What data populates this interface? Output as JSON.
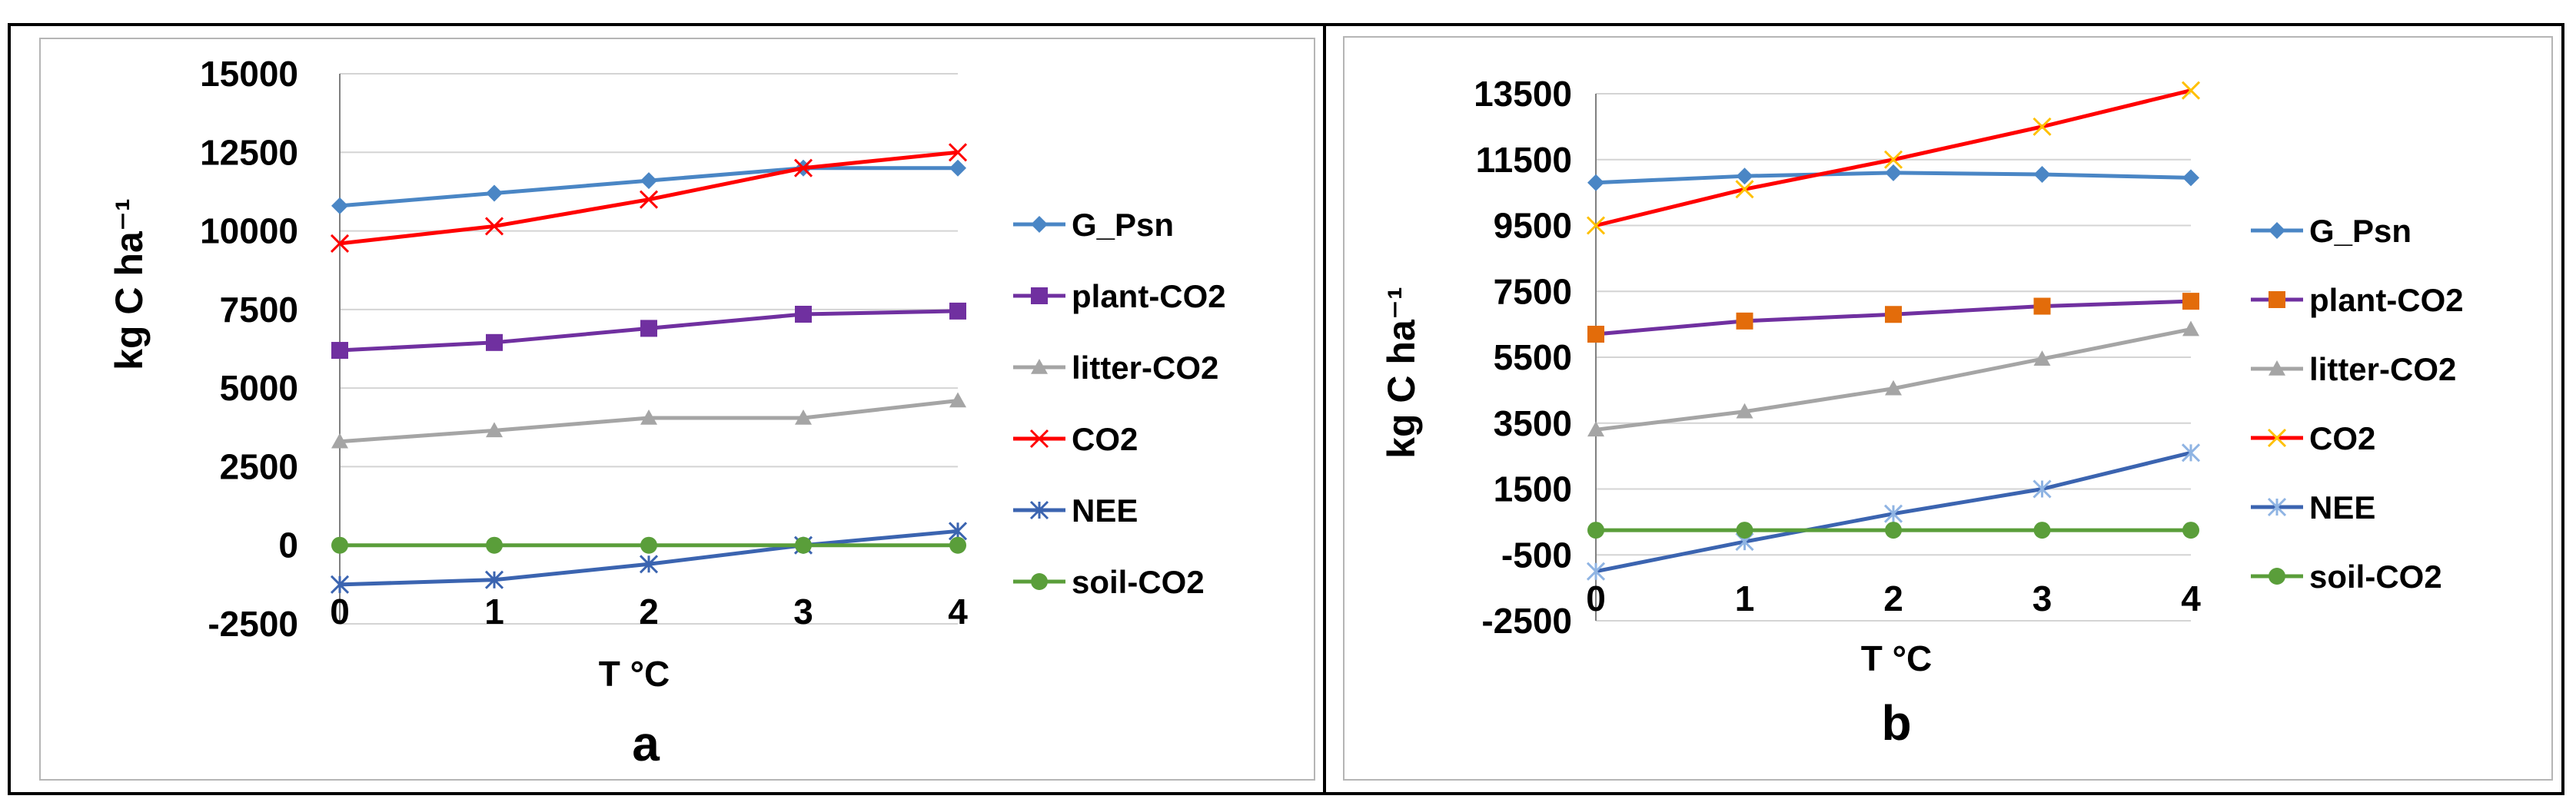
{
  "chart_data": [
    {
      "type": "line",
      "panel_label": "a",
      "xlabel": "T °C",
      "ylabel": "kg C ha⁻¹",
      "x": [
        0,
        1,
        2,
        3,
        4
      ],
      "x_tick_labels": [
        "0",
        "1",
        "2",
        "3",
        "4"
      ],
      "ylim": [
        -2500,
        15000
      ],
      "y_ticks": [
        -2500,
        0,
        2500,
        5000,
        7500,
        10000,
        12500,
        15000
      ],
      "y_tick_labels": [
        "-2500",
        "0",
        "2500",
        "5000",
        "7500",
        "10000",
        "12500",
        "15000"
      ],
      "grid": true,
      "legend_position": "right",
      "series": [
        {
          "name": "G_Psn",
          "color": "#4A86C5",
          "marker": "diamond",
          "values": [
            10800,
            11200,
            11600,
            12000,
            12000
          ]
        },
        {
          "name": "plant-CO2",
          "color": "#7030A0",
          "marker": "square",
          "values": [
            6200,
            6450,
            6900,
            7350,
            7450
          ]
        },
        {
          "name": "litter-CO2",
          "color": "#A5A5A5",
          "marker": "triangle",
          "values": [
            3300,
            3650,
            4050,
            4050,
            4600
          ]
        },
        {
          "name": "CO2",
          "color": "#FF0000",
          "marker": "x",
          "values": [
            9600,
            10150,
            11000,
            12000,
            12500
          ]
        },
        {
          "name": "NEE",
          "color": "#3B64B0",
          "marker": "star",
          "values": [
            -1250,
            -1100,
            -600,
            0,
            450
          ]
        },
        {
          "name": "soil-CO2",
          "color": "#5A9E3A",
          "marker": "circle",
          "values": [
            0,
            0,
            0,
            0,
            0
          ]
        }
      ]
    },
    {
      "type": "line",
      "panel_label": "b",
      "xlabel": "T °C",
      "ylabel": "kg C ha⁻¹",
      "x": [
        0,
        1,
        2,
        3,
        4
      ],
      "x_tick_labels": [
        "0",
        "1",
        "2",
        "3",
        "4"
      ],
      "ylim": [
        -2500,
        13500
      ],
      "y_ticks": [
        -2500,
        -500,
        1500,
        3500,
        5500,
        7500,
        9500,
        11500,
        13500
      ],
      "y_tick_labels": [
        "-2500",
        "-500",
        "1500",
        "3500",
        "5500",
        "7500",
        "9500",
        "11500",
        "13500"
      ],
      "grid": true,
      "legend_position": "right",
      "series": [
        {
          "name": "G_Psn",
          "color": "#4A86C5",
          "marker": "diamond",
          "values": [
            10800,
            11000,
            11100,
            11050,
            10950
          ]
        },
        {
          "name": "plant-CO2",
          "color": "#7030A0",
          "marker": "square",
          "values": [
            6200,
            6600,
            6800,
            7050,
            7200
          ],
          "marker_color": "#E36C0A"
        },
        {
          "name": "litter-CO2",
          "color": "#A5A5A5",
          "marker": "triangle",
          "values": [
            3300,
            3850,
            4550,
            5450,
            6350
          ]
        },
        {
          "name": "CO2",
          "color": "#FF0000",
          "marker": "x",
          "values": [
            9500,
            10600,
            11500,
            12500,
            13600
          ],
          "marker_color": "#FFC000"
        },
        {
          "name": "NEE",
          "color": "#3B64B0",
          "marker": "star",
          "values": [
            -1000,
            -100,
            750,
            1500,
            2600
          ],
          "marker_color": "#8FB4E3"
        },
        {
          "name": "soil-CO2",
          "color": "#5A9E3A",
          "marker": "circle",
          "values": [
            250,
            250,
            250,
            250,
            250
          ]
        }
      ]
    }
  ]
}
